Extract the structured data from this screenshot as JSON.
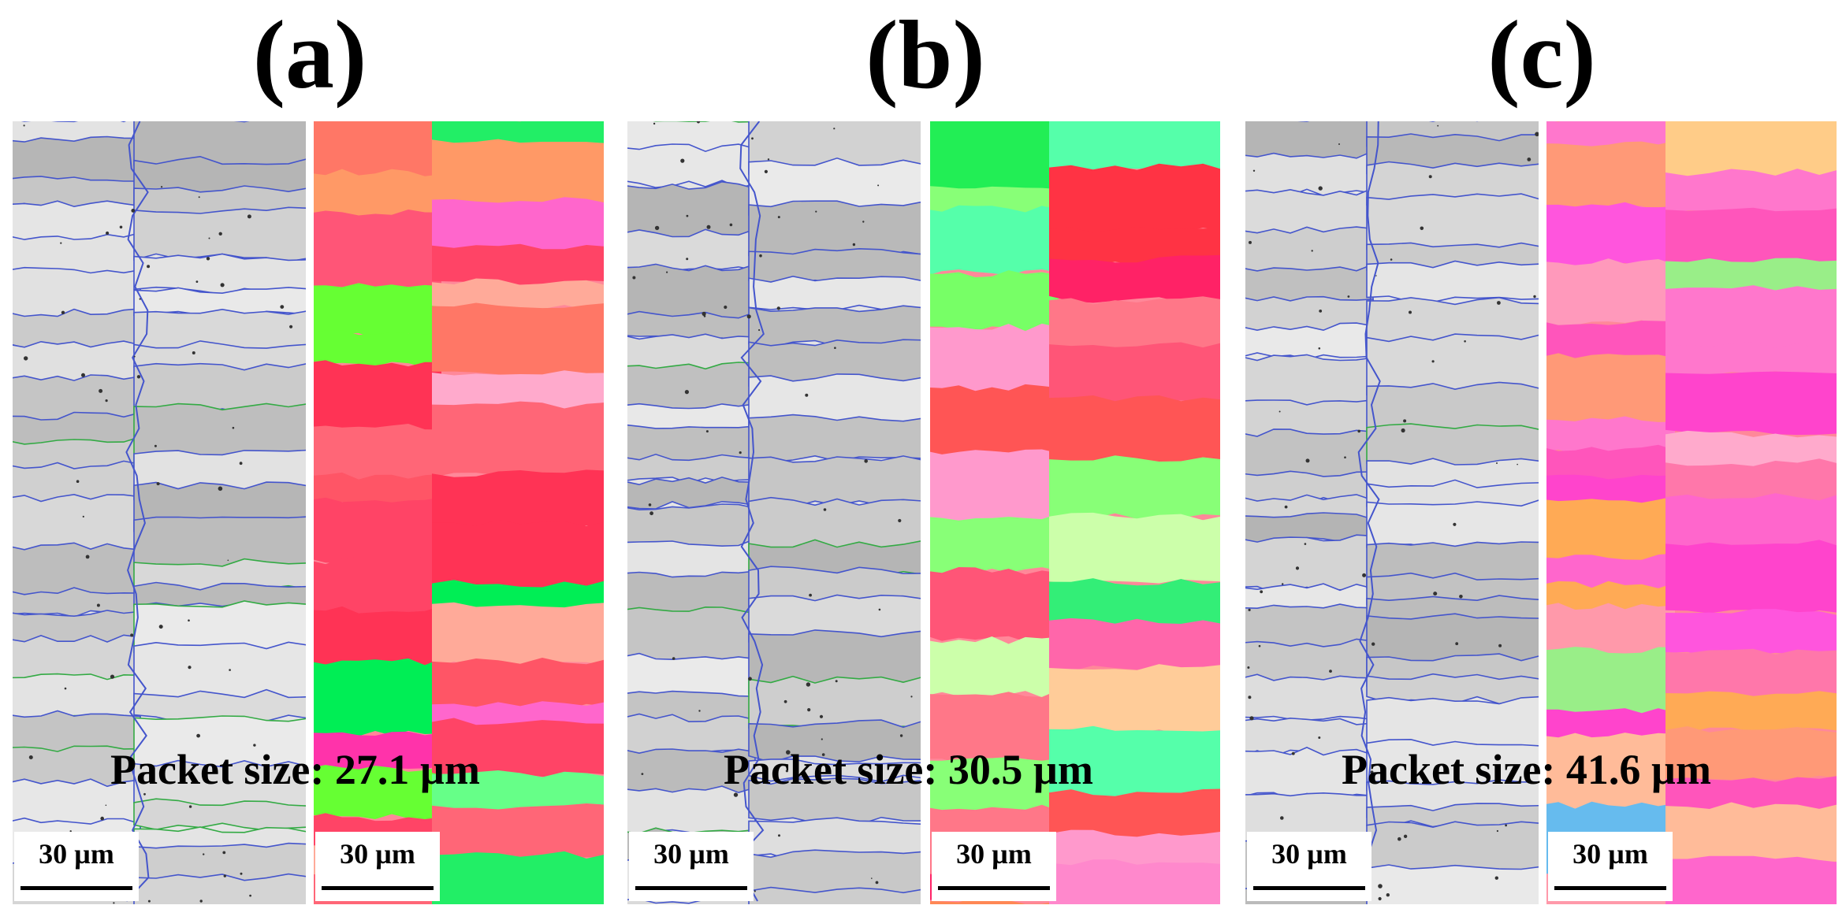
{
  "panels": [
    {
      "label": "(a)",
      "packet_size": "Packet size: 27.1 µm",
      "scale_left": "30 µm",
      "scale_right": "30 µm",
      "ipf_colors": [
        "#ff3355",
        "#66ff33",
        "#ff6677",
        "#ff5577",
        "#ff9966",
        "#22ee66",
        "#ff8888",
        "#ff4466",
        "#66ff88",
        "#ffaa99",
        "#ff33aa",
        "#99ff44",
        "#ff7766",
        "#00ee55",
        "#ff66cc",
        "#ff88aa",
        "#ffaacc",
        "#ff5566"
      ]
    },
    {
      "label": "(b)",
      "packet_size": "Packet size: 30.5 µm",
      "scale_left": "30 µm",
      "scale_right": "30 µm",
      "ipf_colors": [
        "#ff3344",
        "#ff66aa",
        "#ff7788",
        "#33ee77",
        "#ff8855",
        "#ff5555",
        "#ff2266",
        "#88ff77",
        "#ffcc99",
        "#ff4455",
        "#77ff66",
        "#ff3333",
        "#ccffaa",
        "#ff88cc",
        "#22ee55",
        "#ff5577",
        "#55ffaa",
        "#ff99cc"
      ]
    },
    {
      "label": "(c)",
      "packet_size": "Packet size: 41.6 µm",
      "scale_left": "30 µm",
      "scale_right": "30 µm",
      "ipf_colors": [
        "#ffaa55",
        "#ff99bb",
        "#ff77aa",
        "#99ee88",
        "#ff66cc",
        "#ff44cc",
        "#ffaacc",
        "#ff88dd",
        "#77ccee",
        "#ff66aa",
        "#ff9977",
        "#ff55dd",
        "#66bbee",
        "#ff99aa",
        "#ffcc88",
        "#ff77cc",
        "#ff55bb",
        "#ffbb99"
      ]
    }
  ],
  "colors": {
    "band_contrast_light": "#e4e4e4",
    "band_contrast_dark": "#9a9a9a",
    "hagb_line": "#4455cc",
    "lagb_line": "#33aa44"
  }
}
